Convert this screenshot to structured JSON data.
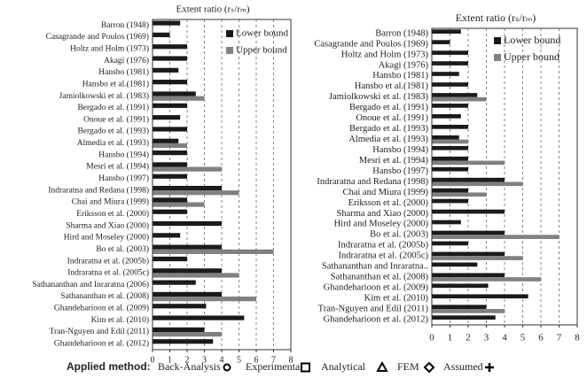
{
  "chart_data": [
    {
      "type": "bar",
      "orientation": "horizontal",
      "title": "Extent ratio (rₛ/rₘ)",
      "categories": [
        "Barron (1948)",
        "Casagrande and Poulos (1969)",
        "Holtz and Holm (1973)",
        "Akagi (1976)",
        "Hansbo (1981)",
        "Hansbo et al.(1981)",
        "Jamiolkowski et al. (1983)",
        "Bergado et al. (1991)",
        "Onoue et al. (1991)",
        "Bergado et al. (1993)",
        "Almedia et al. (1993)",
        "Hansbo (1994)",
        "Mesri et al. (1994)",
        "Hansbo (1997)",
        "Indraratna and Redana (1998)",
        "Chai and Miura (1999)",
        "Eriksson et al. (2000)",
        "Sharma and Xiao (2000)",
        "Hird and Moseley (2000)",
        "Bo et al. (2003)",
        "Indraratna et al. (2005b)",
        "Indraratna et al. (2005c)",
        "Sathananthan and Inraratna (2006)",
        "Sathananthan et al. (2008)",
        "Ghandeharioon et al. (2009)",
        "Kim et al. (2010)",
        "Tran-Nguyen and Edil (2011)",
        "Ghandeharioon et al. (2012)"
      ],
      "series": [
        {
          "name": "Lower bound",
          "color": "#1a1a1a",
          "values": [
            1.6,
            1,
            2,
            2,
            1.5,
            2,
            2.5,
            2,
            1.6,
            2,
            1.5,
            2,
            2,
            2,
            4,
            2,
            2,
            4,
            1.6,
            4,
            2,
            4,
            2.5,
            4,
            3.1,
            5.3,
            3,
            3.5
          ]
        },
        {
          "name": "Upper bound",
          "color": "#808080",
          "values": [
            null,
            null,
            null,
            null,
            null,
            null,
            3,
            null,
            null,
            null,
            2,
            null,
            4,
            null,
            5,
            3,
            null,
            null,
            null,
            7,
            null,
            5,
            null,
            6,
            null,
            null,
            4,
            null
          ]
        }
      ],
      "xlim": [
        0,
        8
      ],
      "xticks": [
        0,
        1,
        2,
        3,
        4,
        5,
        6,
        7,
        8
      ],
      "grid": true,
      "legend": "upper right"
    },
    {
      "type": "bar",
      "orientation": "horizontal",
      "title": "Extent ratio (rₛ/rₘ)",
      "categories": [
        "Barron (1948)",
        "Casagrande and Poulos (1969)",
        "Holtz and Holm (1973)",
        "Akagi (1976)",
        "Hansbo (1981)",
        "Hansbo et al.(1981)",
        "Jamiolkowski et al. (1983)",
        "Bergado et al. (1991)",
        "Onoue et al. (1991)",
        "Bergado et al. (1993)",
        "Almedia et al. (1993)",
        "Hansbo (1994)",
        "Mesri et al. (1994)",
        "Hansbo (1997)",
        "Indraratna and Redana (1998)",
        "Chai and Miura (1999)",
        "Eriksson et al. (2000)",
        "Sharma and Xiao (2000)",
        "Hird and Moseley (2000)",
        "Bo et al. (2003)",
        "Indraratna et al. (2005b)",
        "Indraratna et al. (2005c)",
        "Sathananthan and Inraratna..",
        "Sathananthan et al. (2008)",
        "Ghandeharioon et al. (2009)",
        "Kim et al. (2010)",
        "Tran-Nguyen and Edil (2011)",
        "Ghandeharioon et al. (2012)"
      ],
      "series": [
        {
          "name": "Lower bound",
          "color": "#1a1a1a",
          "values": [
            1.6,
            1,
            2,
            2,
            1.5,
            2,
            2.5,
            2,
            1.6,
            2,
            1.5,
            2,
            2,
            2,
            4,
            2,
            2,
            4,
            1.6,
            4,
            2,
            4,
            2.5,
            4,
            3.1,
            5.3,
            3,
            3.5
          ]
        },
        {
          "name": "Upper bound",
          "color": "#808080",
          "values": [
            null,
            null,
            null,
            null,
            null,
            null,
            3,
            null,
            null,
            null,
            2,
            null,
            4,
            null,
            5,
            3,
            null,
            null,
            null,
            7,
            null,
            5,
            null,
            6,
            null,
            null,
            4,
            null
          ]
        }
      ],
      "xlim": [
        0,
        8
      ],
      "xticks": [
        0,
        1,
        2,
        3,
        4,
        5,
        6,
        7,
        8
      ],
      "grid": true,
      "legend": "upper right"
    }
  ],
  "applied_method": {
    "label": "Applied method:",
    "items": [
      "Back-Analysis",
      "Experimental",
      "Analytical",
      "FEM",
      "Assumed"
    ]
  }
}
